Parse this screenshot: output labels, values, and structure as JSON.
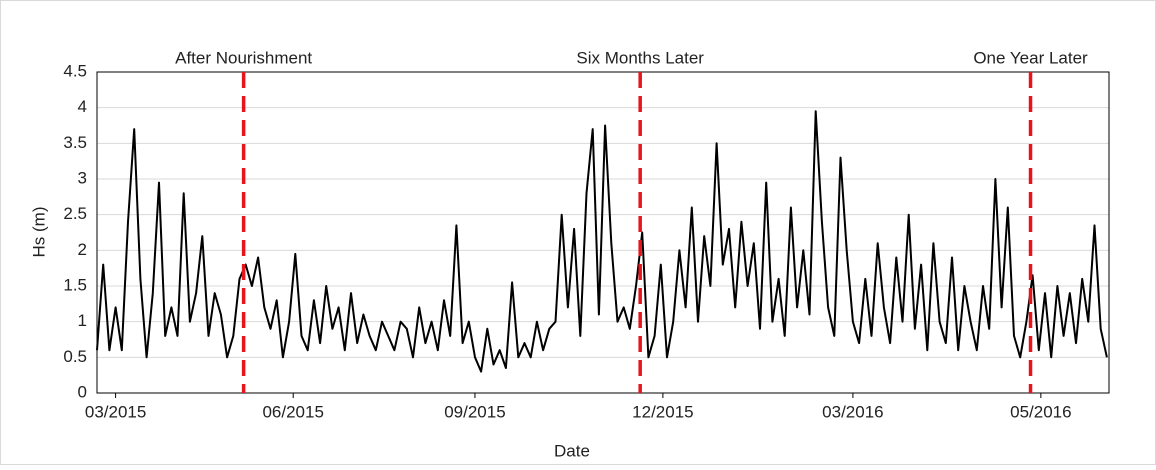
{
  "chart_data": {
    "type": "line",
    "xlabel": "Date",
    "ylabel": "Hs (m)",
    "xlim": [
      0,
      490
    ],
    "xticks": [
      {
        "value": 9,
        "label": "03/2015"
      },
      {
        "value": 95,
        "label": "06/2015"
      },
      {
        "value": 183,
        "label": "09/2015"
      },
      {
        "value": 274,
        "label": "12/2015"
      },
      {
        "value": 366,
        "label": "03/2016"
      },
      {
        "value": 457,
        "label": "05/2016"
      }
    ],
    "ylim": [
      0,
      4.5
    ],
    "yticks": [
      0,
      0.5,
      1,
      1.5,
      2,
      2.5,
      3,
      3.5,
      4,
      4.5
    ],
    "grid": true,
    "x": [
      0,
      3,
      6,
      9,
      12,
      15,
      18,
      21,
      24,
      27,
      30,
      33,
      36,
      39,
      42,
      45,
      48,
      51,
      54,
      57,
      60,
      63,
      66,
      69,
      72,
      75,
      78,
      81,
      84,
      87,
      90,
      93,
      96,
      99,
      102,
      105,
      108,
      111,
      114,
      117,
      120,
      123,
      126,
      129,
      132,
      135,
      138,
      141,
      144,
      147,
      150,
      153,
      156,
      159,
      162,
      165,
      168,
      171,
      174,
      177,
      180,
      183,
      186,
      189,
      192,
      195,
      198,
      201,
      204,
      207,
      210,
      213,
      216,
      219,
      222,
      225,
      228,
      231,
      234,
      237,
      240,
      243,
      246,
      249,
      252,
      255,
      258,
      261,
      264,
      267,
      270,
      273,
      276,
      279,
      282,
      285,
      288,
      291,
      294,
      297,
      300,
      303,
      306,
      309,
      312,
      315,
      318,
      321,
      324,
      327,
      330,
      333,
      336,
      339,
      342,
      345,
      348,
      351,
      354,
      357,
      360,
      363,
      366,
      369,
      372,
      375,
      378,
      381,
      384,
      387,
      390,
      393,
      396,
      399,
      402,
      405,
      408,
      411,
      414,
      417,
      420,
      423,
      426,
      429,
      432,
      435,
      438,
      441,
      444,
      447,
      450,
      453,
      456,
      459,
      462,
      465,
      468,
      471,
      474,
      477,
      480,
      483,
      486,
      489
    ],
    "series": [
      {
        "name": "Hs",
        "color": "#000000",
        "values": [
          0.6,
          1.8,
          0.6,
          1.2,
          0.6,
          2.4,
          3.7,
          1.6,
          0.5,
          1.4,
          2.95,
          0.8,
          1.2,
          0.8,
          2.8,
          1.0,
          1.4,
          2.2,
          0.8,
          1.4,
          1.1,
          0.5,
          0.8,
          1.6,
          1.8,
          1.5,
          1.9,
          1.2,
          0.9,
          1.3,
          0.5,
          1.0,
          1.95,
          0.8,
          0.6,
          1.3,
          0.7,
          1.5,
          0.9,
          1.2,
          0.6,
          1.4,
          0.7,
          1.1,
          0.8,
          0.6,
          1.0,
          0.8,
          0.6,
          1.0,
          0.9,
          0.5,
          1.2,
          0.7,
          1.0,
          0.6,
          1.3,
          0.8,
          2.35,
          0.7,
          1.0,
          0.5,
          0.3,
          0.9,
          0.4,
          0.6,
          0.35,
          1.55,
          0.5,
          0.7,
          0.5,
          1.0,
          0.6,
          0.9,
          1.0,
          2.5,
          1.2,
          2.3,
          0.8,
          2.8,
          3.7,
          1.1,
          3.75,
          2.1,
          1.0,
          1.2,
          0.9,
          1.5,
          2.25,
          0.5,
          0.8,
          1.8,
          0.5,
          1.0,
          2.0,
          1.2,
          2.6,
          1.0,
          2.2,
          1.5,
          3.5,
          1.8,
          2.3,
          1.2,
          2.4,
          1.5,
          2.1,
          0.9,
          2.95,
          1.0,
          1.6,
          0.8,
          2.6,
          1.2,
          2.0,
          1.1,
          3.95,
          2.4,
          1.2,
          0.8,
          3.3,
          2.0,
          1.0,
          0.7,
          1.6,
          0.8,
          2.1,
          1.2,
          0.7,
          1.9,
          1.0,
          2.5,
          0.9,
          1.8,
          0.6,
          2.1,
          1.0,
          0.7,
          1.9,
          0.6,
          1.5,
          1.0,
          0.6,
          1.5,
          0.9,
          3.0,
          1.2,
          2.6,
          0.8,
          0.5,
          1.0,
          1.65,
          0.6,
          1.4,
          0.5,
          1.5,
          0.8,
          1.4,
          0.7,
          1.6,
          1.0,
          2.35,
          0.9,
          0.5
        ]
      }
    ],
    "vlines": [
      {
        "x": 71,
        "label": "After Nourishment"
      },
      {
        "x": 263,
        "label": "Six Months Later"
      },
      {
        "x": 452,
        "label": "One Year Later"
      }
    ],
    "vline_color": "#e8141b"
  }
}
